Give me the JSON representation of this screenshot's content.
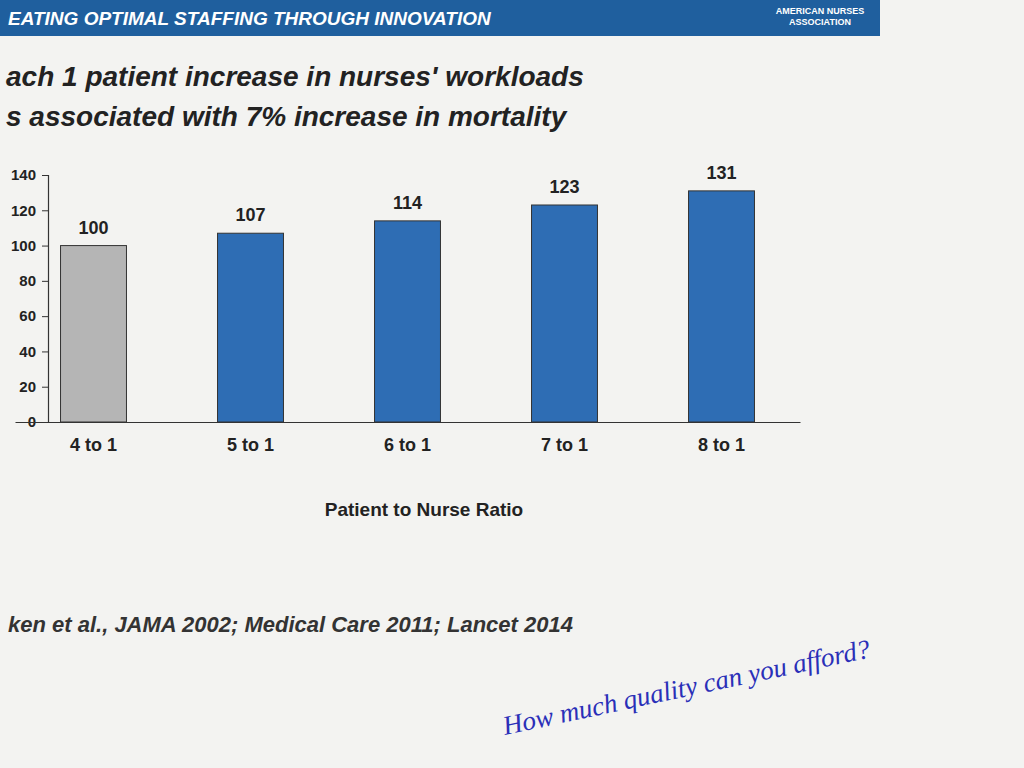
{
  "chart_data": {
    "type": "bar",
    "header": "EATING OPTIMAL STAFFING THROUGH INNOVATION",
    "organization": [
      "AMERICAN NURSES",
      "ASSOCIATION"
    ],
    "title": [
      "ach 1 patient increase in nurses' workloads",
      "s associated with 7% increase in mortality"
    ],
    "categories": [
      "4 to 1",
      "5 to 1",
      "6 to 1",
      "7 to 1",
      "8 to 1"
    ],
    "values": [
      100,
      107,
      114,
      123,
      131
    ],
    "colors": [
      "#b5b5b5",
      "#2e6db4",
      "#2e6db4",
      "#2e6db4",
      "#2e6db4"
    ],
    "x_label": "Patient to Nurse Ratio",
    "ylim": [
      0,
      140
    ],
    "yticks": [
      0,
      20,
      40,
      60,
      80,
      100,
      120,
      140
    ],
    "grid": false,
    "data_labels": true,
    "source": "ken et al., JAMA 2002; Medical Care 2011; Lancet 2014",
    "annotation": "How much quality can you afford?"
  }
}
